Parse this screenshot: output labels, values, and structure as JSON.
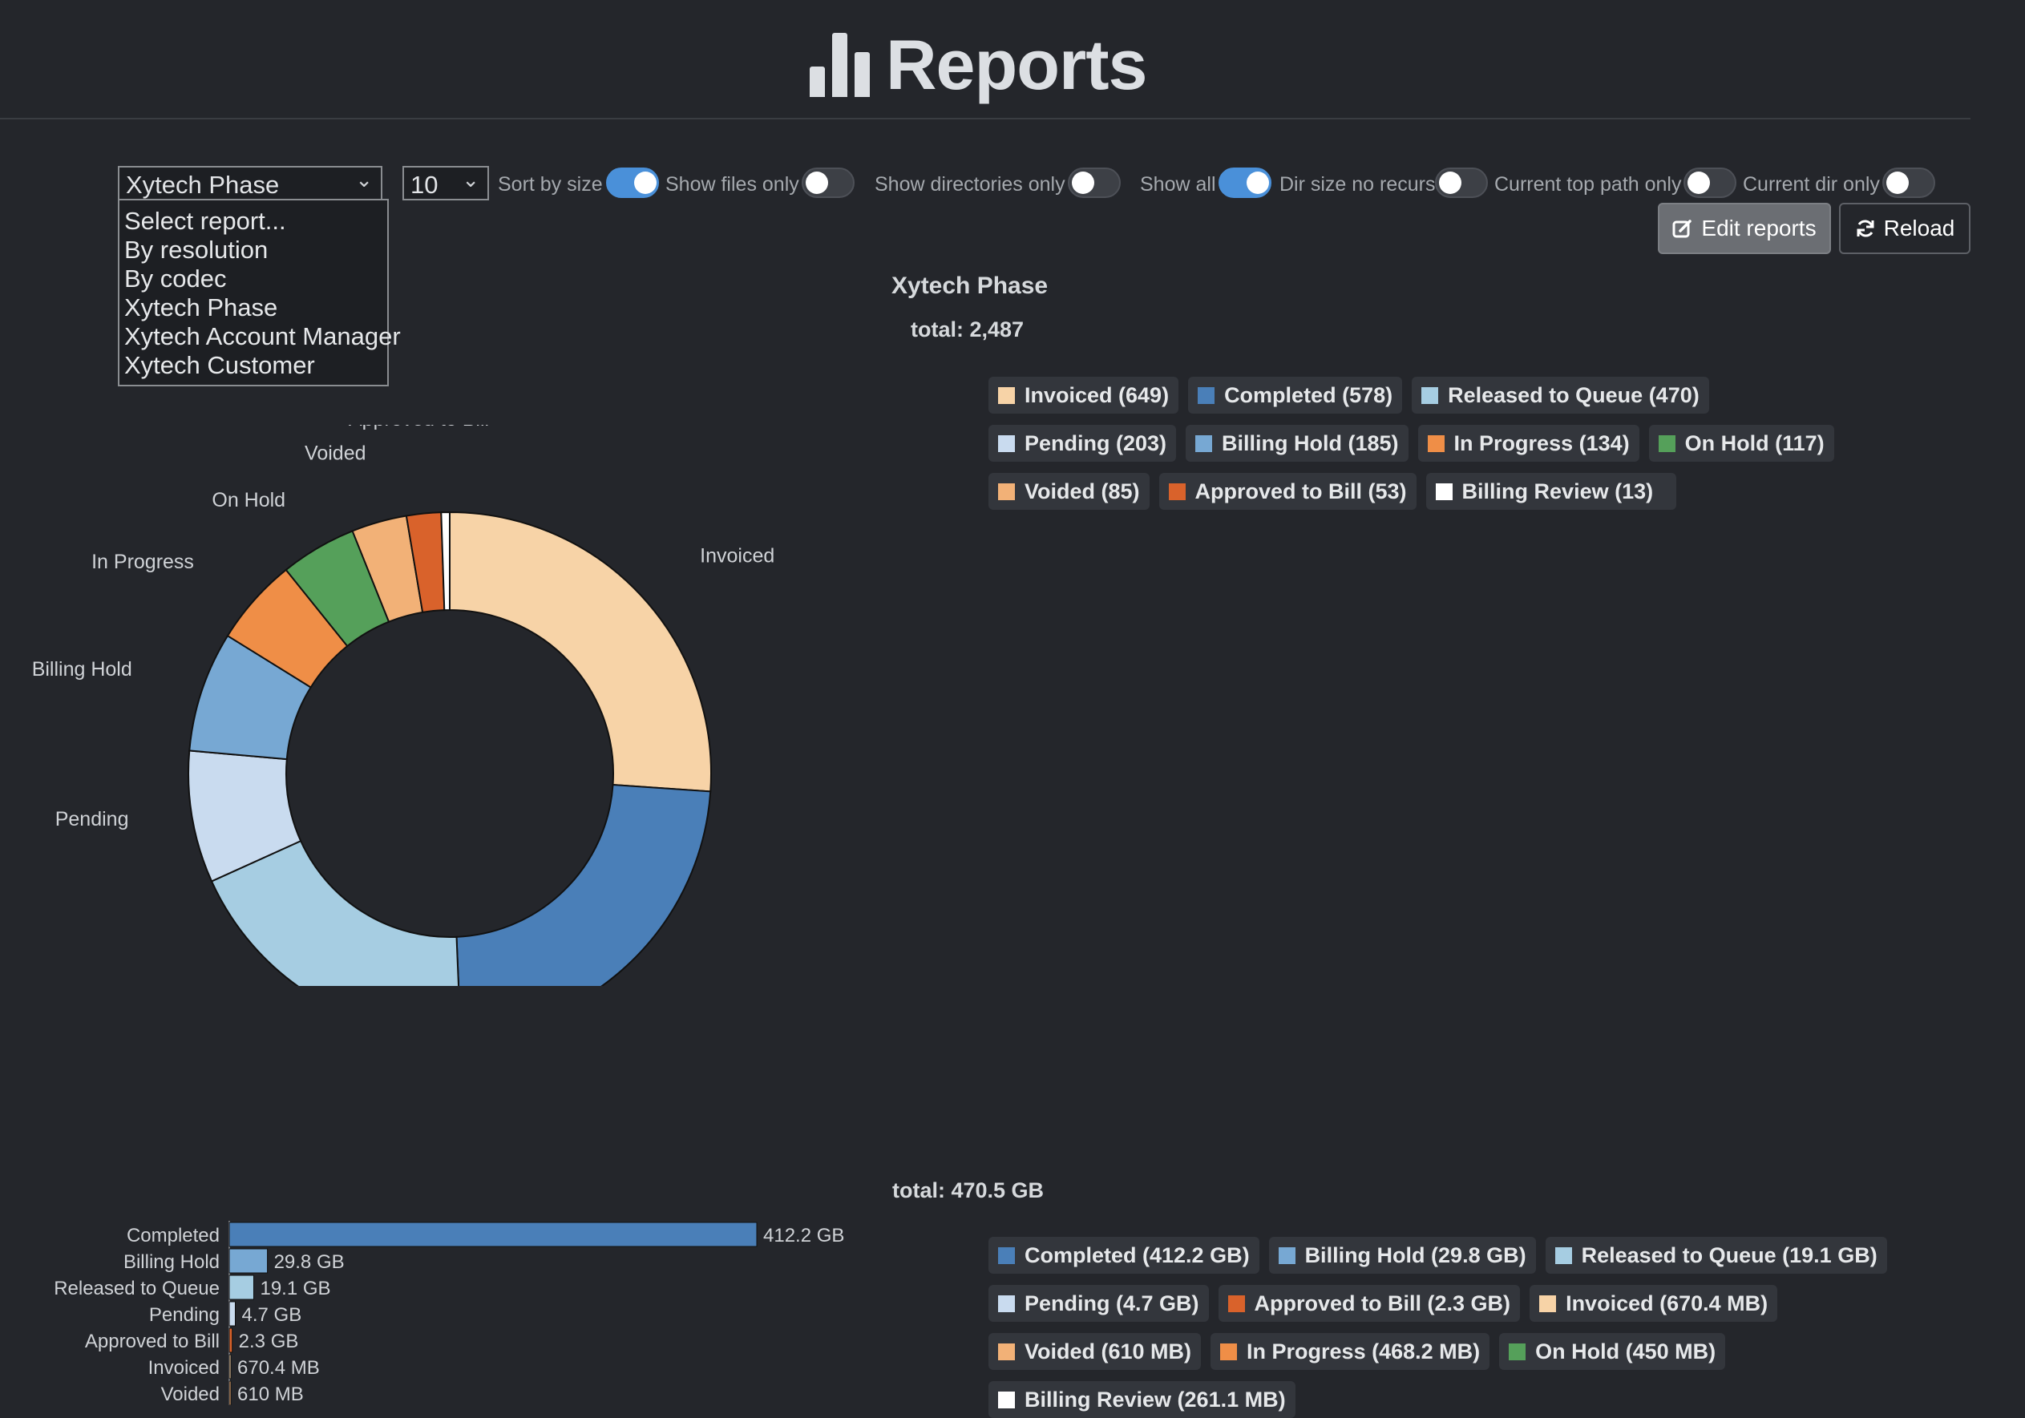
{
  "header": {
    "title": "Reports",
    "icon": "bar-chart-icon"
  },
  "controls": {
    "report_select": {
      "value": "Xytech Phase",
      "options": [
        "Select report...",
        "By resolution",
        "By codec",
        "Xytech Phase",
        "Xytech Account Manager",
        "Xytech Customer"
      ]
    },
    "count_select": {
      "value": "10"
    },
    "toggles": [
      {
        "label": "Sort by size",
        "on": true
      },
      {
        "label": "Show files only",
        "on": false
      },
      {
        "label": "Show directories only",
        "on": false
      },
      {
        "label": "Show all",
        "on": true
      },
      {
        "label": "Dir size no recurs",
        "on": false
      },
      {
        "label": "Current top path only",
        "on": false
      },
      {
        "label": "Current dir only",
        "on": false
      }
    ],
    "edit_button": "Edit reports",
    "reload_button": "Reload"
  },
  "report_title": "Xytech Phase",
  "count_total": "total: 2,487",
  "size_total": "total: 470.5 GB",
  "colors": {
    "Invoiced": "#f7d3a7",
    "Completed": "#4a7fb8",
    "Released to Queue": "#a6cde2",
    "Pending": "#c9dbef",
    "Billing Hold": "#77a8d3",
    "In Progress": "#ef8e47",
    "On Hold": "#55a05a",
    "Voided": "#f2b177",
    "Approved to Bill": "#d9622b",
    "Billing Review": "#ffffff"
  },
  "count_legend": [
    {
      "name": "Invoiced",
      "label": "Invoiced (649)"
    },
    {
      "name": "Completed",
      "label": "Completed (578)"
    },
    {
      "name": "Released to Queue",
      "label": "Released to Queue (470)"
    },
    {
      "name": "Pending",
      "label": "Pending (203)"
    },
    {
      "name": "Billing Hold",
      "label": "Billing Hold (185)"
    },
    {
      "name": "In Progress",
      "label": "In Progress (134)"
    },
    {
      "name": "On Hold",
      "label": "On Hold (117)"
    },
    {
      "name": "Voided",
      "label": "Voided (85)"
    },
    {
      "name": "Approved to Bill",
      "label": "Approved to Bill (53)"
    },
    {
      "name": "Billing Review",
      "label": "Billing Review (13)"
    }
  ],
  "size_legend": [
    {
      "name": "Completed",
      "label": "Completed (412.2 GB)"
    },
    {
      "name": "Billing Hold",
      "label": "Billing Hold (29.8 GB)"
    },
    {
      "name": "Released to Queue",
      "label": "Released to Queue (19.1 GB)"
    },
    {
      "name": "Pending",
      "label": "Pending (4.7 GB)"
    },
    {
      "name": "Approved to Bill",
      "label": "Approved to Bill (2.3 GB)"
    },
    {
      "name": "Invoiced",
      "label": "Invoiced (670.4 MB)"
    },
    {
      "name": "Voided",
      "label": "Voided (610 MB)"
    },
    {
      "name": "In Progress",
      "label": "In Progress (468.2 MB)"
    },
    {
      "name": "On Hold",
      "label": "On Hold (450 MB)"
    },
    {
      "name": "Billing Review",
      "label": "Billing Review (261.1 MB)"
    }
  ],
  "chart_data": [
    {
      "type": "pie",
      "title": "Xytech Phase",
      "categories": [
        "Invoiced",
        "Completed",
        "Released to Queue",
        "Pending",
        "Billing Hold",
        "In Progress",
        "On Hold",
        "Voided",
        "Approved to Bill",
        "Billing Review"
      ],
      "values": [
        649,
        578,
        470,
        203,
        185,
        134,
        117,
        85,
        53,
        13
      ],
      "shown_labels": [
        "Invoiced",
        "Completed",
        "Released to Queue",
        "Pending",
        "Billing Hold",
        "In Progress",
        "On Hold",
        "Voided",
        "Approved to Bill"
      ]
    },
    {
      "type": "bar",
      "orientation": "horizontal",
      "categories": [
        "Completed",
        "Billing Hold",
        "Released to Queue",
        "Pending",
        "Approved to Bill",
        "Invoiced",
        "Voided"
      ],
      "values_gb": [
        412.2,
        29.8,
        19.1,
        4.7,
        2.3,
        0.6704,
        0.61
      ],
      "value_labels": [
        "412.2 GB",
        "29.8 GB",
        "19.1 GB",
        "4.7 GB",
        "2.3 GB",
        "670.4 MB",
        "610 MB"
      ]
    }
  ]
}
